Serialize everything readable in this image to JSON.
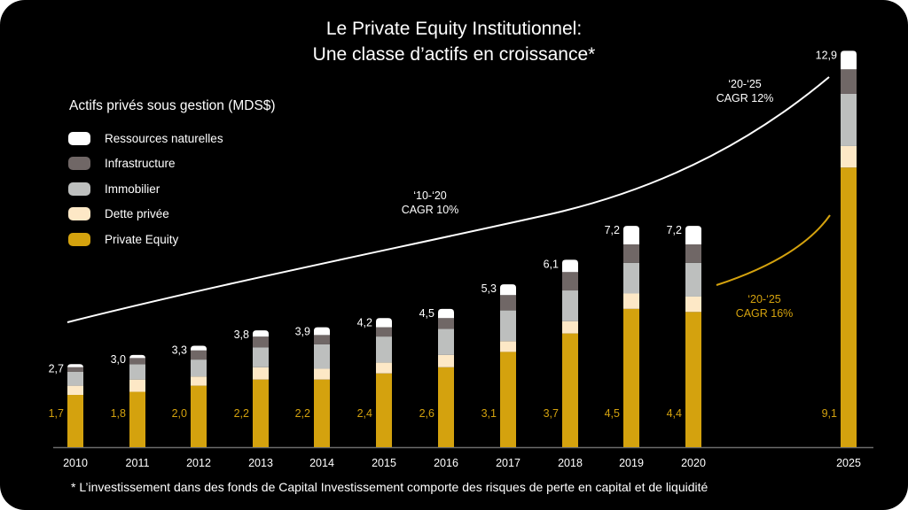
{
  "title_line1": "Le Private Equity Institutionnel:",
  "title_line2": "Une classe d’actifs en croissance*",
  "footnote": "* L’investissement dans des fonds de Capital Investissement comporte des risques de perte en capital et de liquidité",
  "colors": {
    "background": "#000000",
    "private_equity": "#D4A20E",
    "dette_privee": "#FDE8C6",
    "immobilier": "#BDBFBE",
    "infrastructure": "#706766",
    "ressources_naturelles": "#FFFFFF",
    "total_label": "#FFFFFF",
    "pe_label": "#D4A20E",
    "axis": "#6b6b6b"
  },
  "annotations": {
    "cagr_10_20": {
      "period": "‘10-‘20",
      "text": "CAGR 10%"
    },
    "cagr_20_25_total": {
      "period": "‘20-‘25",
      "text": "CAGR 12%"
    },
    "cagr_20_25_pe": {
      "period": "‘20-‘25",
      "text": "CAGR 16%"
    }
  },
  "chart_data": {
    "type": "bar",
    "stacked": true,
    "title": "Le Private Equity Institutionnel: Une classe d’actifs en croissance*",
    "legend_title": "Actifs privés sous gestion (MDS$)",
    "legend_position": "top-left",
    "xlabel": "",
    "ylabel": "",
    "grid": false,
    "ylim": [
      0,
      13
    ],
    "categories": [
      "2010",
      "2011",
      "2012",
      "2013",
      "2014",
      "2015",
      "2016",
      "2017",
      "2018",
      "2019",
      "2020",
      "2025"
    ],
    "totals": [
      2.7,
      3.0,
      3.3,
      3.8,
      3.9,
      4.2,
      4.5,
      5.3,
      6.1,
      7.2,
      7.2,
      12.9
    ],
    "total_labels": [
      "2,7",
      "3,0",
      "3,3",
      "3,8",
      "3,9",
      "4,2",
      "4,5",
      "5,3",
      "6,1",
      "7,2",
      "7,2",
      "12,9"
    ],
    "pe_labels": [
      "1,7",
      "1,8",
      "2,0",
      "2,2",
      "2,2",
      "2,4",
      "2,6",
      "3,1",
      "3,7",
      "4,5",
      "4,4",
      "9,1"
    ],
    "series": [
      {
        "name": "Private Equity",
        "key": "private_equity",
        "values": [
          1.7,
          1.8,
          2.0,
          2.2,
          2.2,
          2.4,
          2.6,
          3.1,
          3.7,
          4.5,
          4.4,
          9.1
        ]
      },
      {
        "name": "Dette privée",
        "key": "dette_privee",
        "values": [
          0.3,
          0.4,
          0.3,
          0.4,
          0.35,
          0.35,
          0.4,
          0.35,
          0.4,
          0.5,
          0.5,
          0.7
        ]
      },
      {
        "name": "Immobilier",
        "key": "immobilier",
        "values": [
          0.45,
          0.5,
          0.55,
          0.65,
          0.8,
          0.85,
          0.85,
          1.0,
          1.0,
          1.0,
          1.1,
          1.7
        ]
      },
      {
        "name": "Infrastructure",
        "key": "infrastructure",
        "values": [
          0.15,
          0.2,
          0.3,
          0.35,
          0.3,
          0.3,
          0.35,
          0.5,
          0.6,
          0.6,
          0.6,
          0.8
        ]
      },
      {
        "name": "Ressources naturelles",
        "key": "ressources_naturelles",
        "values": [
          0.1,
          0.1,
          0.15,
          0.2,
          0.25,
          0.3,
          0.3,
          0.35,
          0.4,
          0.6,
          0.6,
          0.6
        ]
      }
    ],
    "legend_order": [
      "Ressources naturelles",
      "Infrastructure",
      "Immobilier",
      "Dette privée",
      "Private Equity"
    ]
  }
}
